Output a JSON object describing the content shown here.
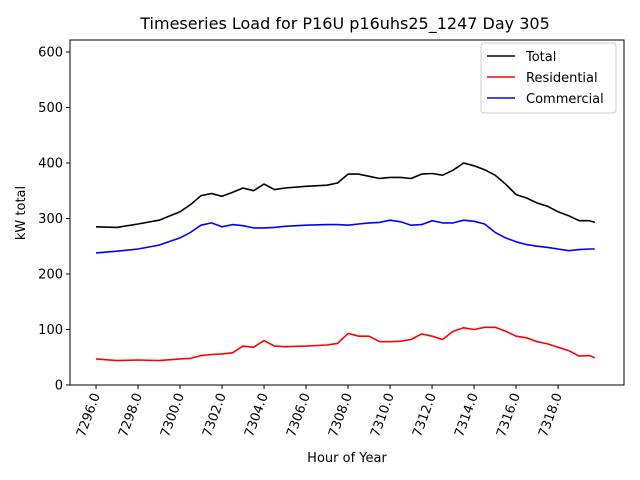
{
  "chart_data": {
    "type": "line",
    "title": "Timeseries Load for P16U p16uhs25_1247  Day 305",
    "xlabel": "Hour of Year",
    "ylabel": "kW total",
    "xlim": [
      7294.76,
      7321.14
    ],
    "ylim": [
      0,
      621.6
    ],
    "xticks": [
      7296,
      7298,
      7300,
      7302,
      7304,
      7306,
      7308,
      7310,
      7312,
      7314,
      7316,
      7318
    ],
    "xtick_labels": [
      "7296.0",
      "7298.0",
      "7300.0",
      "7302.0",
      "7304.0",
      "7306.0",
      "7308.0",
      "7310.0",
      "7312.0",
      "7314.0",
      "7316.0",
      "7318.0"
    ],
    "yticks": [
      0,
      100,
      200,
      300,
      400,
      500,
      600
    ],
    "ytick_labels": [
      "0",
      "100",
      "200",
      "300",
      "400",
      "500",
      "600"
    ],
    "grid": false,
    "legend_position": "top-right",
    "x": [
      7296,
      7297,
      7298,
      7299,
      7300,
      7300.5,
      7301,
      7301.5,
      7302,
      7302.5,
      7303,
      7303.5,
      7304,
      7304.5,
      7305,
      7306,
      7307,
      7307.5,
      7308,
      7308.5,
      7309,
      7309.5,
      7310,
      7310.5,
      7311,
      7311.5,
      7312,
      7312.5,
      7313,
      7313.5,
      7314,
      7314.5,
      7315,
      7315.5,
      7316,
      7316.5,
      7317,
      7317.5,
      7318,
      7318.5,
      7319,
      7319.5,
      7319.75
    ],
    "series": [
      {
        "name": "Total",
        "color": "#000000",
        "values": [
          285,
          284,
          290,
          297,
          312,
          325,
          341,
          345,
          340,
          347,
          355,
          350,
          362,
          352,
          355,
          358,
          360,
          364,
          380,
          380,
          376,
          372,
          374,
          374,
          372,
          380,
          381,
          378,
          387,
          400,
          395,
          388,
          378,
          362,
          343,
          337,
          328,
          322,
          312,
          305,
          296,
          296,
          293
        ]
      },
      {
        "name": "Residential",
        "color": "#ff0000",
        "values": [
          47,
          44,
          45,
          44,
          47,
          48,
          53,
          55,
          56,
          58,
          70,
          68,
          80,
          70,
          69,
          70,
          72,
          75,
          93,
          88,
          88,
          78,
          78,
          79,
          82,
          92,
          88,
          82,
          97,
          103,
          100,
          104,
          104,
          97,
          88,
          85,
          78,
          74,
          68,
          62,
          52,
          53,
          49
        ]
      },
      {
        "name": "Commercial",
        "color": "#0000ff",
        "values": [
          238,
          241,
          245,
          252,
          265,
          275,
          288,
          292,
          285,
          289,
          287,
          283,
          283,
          284,
          286,
          288,
          289,
          289,
          288,
          290,
          292,
          293,
          297,
          294,
          288,
          289,
          296,
          292,
          292,
          297,
          295,
          290,
          275,
          265,
          258,
          253,
          250,
          248,
          245,
          242,
          244,
          245,
          245
        ]
      }
    ]
  }
}
